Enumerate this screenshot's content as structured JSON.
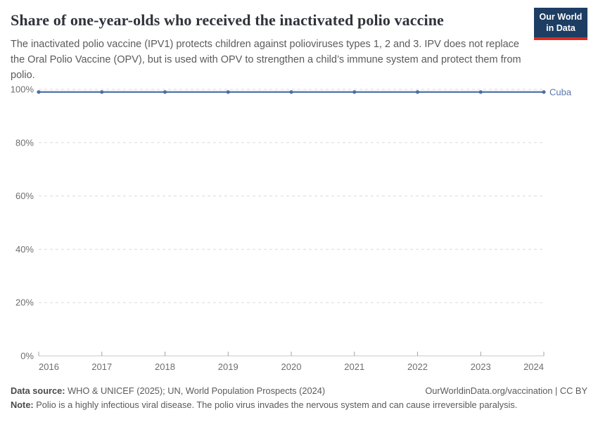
{
  "header": {
    "title": "Share of one-year-olds who received the inactivated polio vaccine",
    "subtitle": "The inactivated polio vaccine (IPV1) protects children against polioviruses types 1, 2 and 3. IPV does not replace the Oral Polio Vaccine (OPV), but is used with OPV to strengthen a child’s immune system and protect them from polio.",
    "logo": {
      "line1": "Our World",
      "line2": "in Data",
      "bg_color": "#1d3d63",
      "bar_color": "#dc2b1e"
    }
  },
  "chart_data": {
    "type": "line",
    "title": "Share of one-year-olds who received the inactivated polio vaccine",
    "xlabel": "",
    "ylabel": "",
    "xlim": [
      2016,
      2024
    ],
    "ylim": [
      0,
      100
    ],
    "grid": "horizontal-dashed",
    "legend_position": "end-of-line",
    "x_ticks": [
      {
        "value": 2016,
        "label": "2016"
      },
      {
        "value": 2017,
        "label": "2017"
      },
      {
        "value": 2018,
        "label": "2018"
      },
      {
        "value": 2019,
        "label": "2019"
      },
      {
        "value": 2020,
        "label": "2020"
      },
      {
        "value": 2021,
        "label": "2021"
      },
      {
        "value": 2022,
        "label": "2022"
      },
      {
        "value": 2023,
        "label": "2023"
      },
      {
        "value": 2024,
        "label": "2024"
      }
    ],
    "y_ticks": [
      {
        "value": 0,
        "label": "0%"
      },
      {
        "value": 20,
        "label": "20%"
      },
      {
        "value": 40,
        "label": "40%"
      },
      {
        "value": 60,
        "label": "60%"
      },
      {
        "value": 80,
        "label": "80%"
      },
      {
        "value": 100,
        "label": "100%"
      }
    ],
    "series": [
      {
        "name": "Cuba",
        "color": "#5878AB",
        "marker_color": "#4E6DA3",
        "x": [
          2016,
          2017,
          2018,
          2019,
          2020,
          2021,
          2022,
          2023,
          2024
        ],
        "values": [
          99,
          99,
          99,
          99,
          99,
          99,
          99,
          99,
          99
        ]
      }
    ],
    "colors": {
      "grid": "#DBDBDB",
      "axis": "#C7C7C7",
      "axis_tick": "#A3A3A3",
      "tick_text": "#6E6E6E"
    }
  },
  "footer": {
    "source_label": "Data source:",
    "source_text": " WHO & UNICEF (2025); UN, World Population Prospects (2024)",
    "link": "OurWorldinData.org/vaccination | CC BY",
    "note_label": "Note:",
    "note_text": " Polio is a highly infectious viral disease. The polio virus invades the nervous system and can cause irreversible paralysis."
  }
}
